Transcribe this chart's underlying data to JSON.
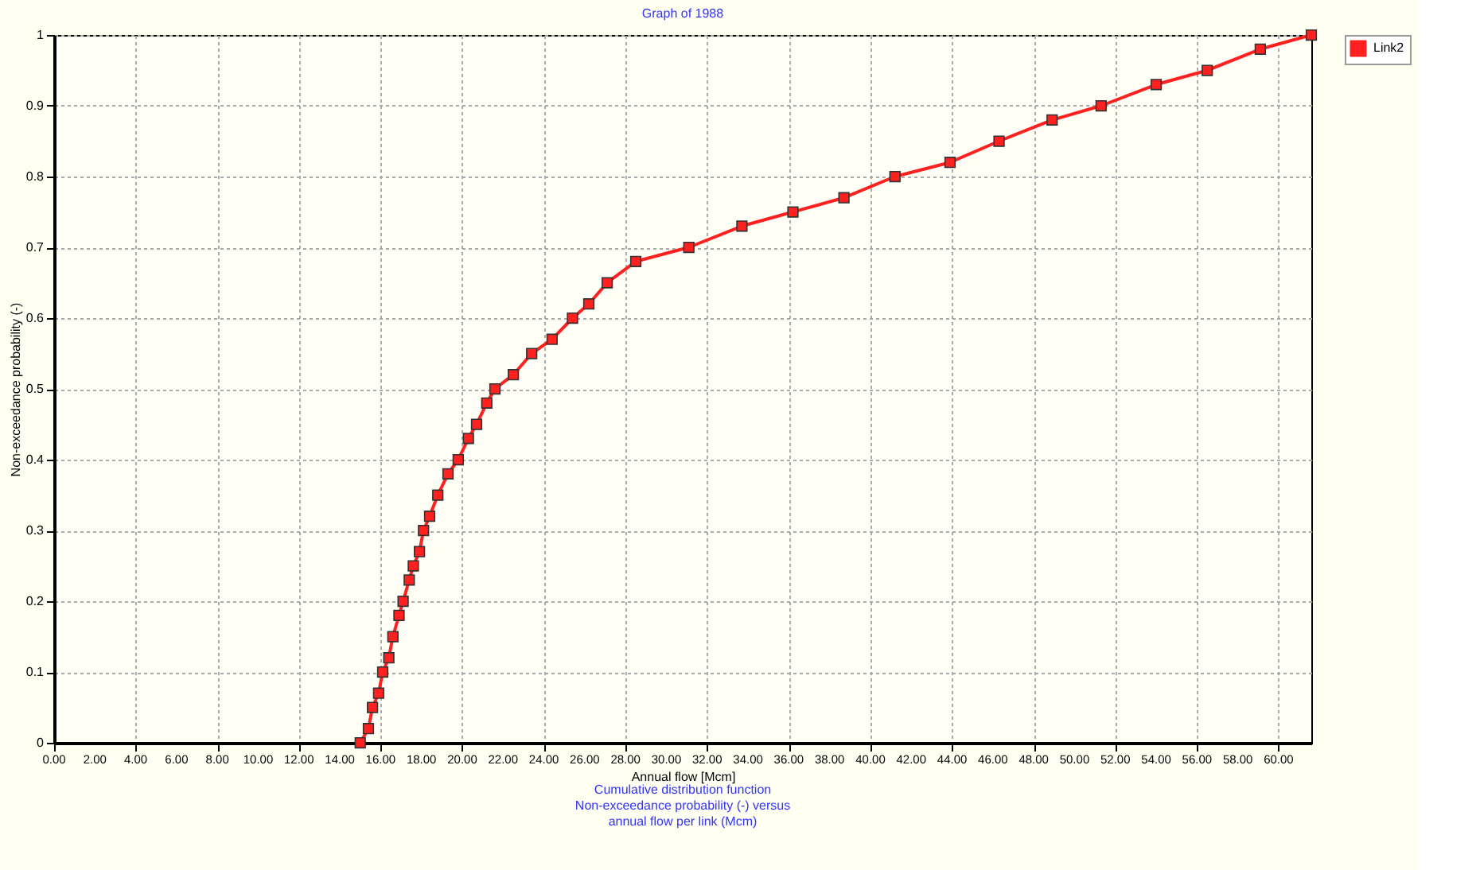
{
  "chart_data": {
    "type": "line",
    "title": "Graph of 1988",
    "xlabel": "Annual flow [Mcm]",
    "ylabel": "Non-exceedance probability (-)",
    "annotations": [
      "Cumulative distribution function",
      "Non-exceedance probability (-) versus",
      "annual flow per link (Mcm)"
    ],
    "x": [
      15.0,
      15.4,
      15.6,
      15.9,
      16.1,
      16.4,
      16.6,
      16.9,
      17.1,
      17.4,
      17.6,
      17.9,
      18.1,
      18.4,
      18.8,
      19.3,
      19.8,
      20.3,
      20.7,
      21.2,
      21.6,
      22.5,
      23.4,
      24.4,
      25.4,
      26.2,
      27.1,
      28.5,
      31.1,
      33.7,
      36.2,
      38.7,
      41.2,
      43.9,
      46.3,
      48.9,
      51.3,
      54.0,
      56.5,
      59.1,
      61.6
    ],
    "series": [
      {
        "name": "Link2",
        "color": "#ff2020",
        "values": [
          0,
          0.02,
          0.05,
          0.07,
          0.1,
          0.12,
          0.15,
          0.18,
          0.2,
          0.23,
          0.25,
          0.27,
          0.3,
          0.32,
          0.35,
          0.38,
          0.4,
          0.43,
          0.45,
          0.48,
          0.5,
          0.52,
          0.55,
          0.57,
          0.6,
          0.62,
          0.65,
          0.68,
          0.7,
          0.73,
          0.75,
          0.77,
          0.8,
          0.82,
          0.85,
          0.88,
          0.9,
          0.93,
          0.95,
          0.98,
          1.0
        ]
      }
    ],
    "xlim": [
      0,
      61.6
    ],
    "xticks": [
      {
        "value": 0,
        "label": "0.00"
      },
      {
        "value": 2,
        "label": "2.00"
      },
      {
        "value": 4,
        "label": "4.00"
      },
      {
        "value": 6,
        "label": "6.00"
      },
      {
        "value": 8,
        "label": "8.00"
      },
      {
        "value": 10,
        "label": "10.00"
      },
      {
        "value": 12,
        "label": "12.00"
      },
      {
        "value": 14,
        "label": "14.00"
      },
      {
        "value": 16,
        "label": "16.00"
      },
      {
        "value": 18,
        "label": "18.00"
      },
      {
        "value": 20,
        "label": "20.00"
      },
      {
        "value": 22,
        "label": "22.00"
      },
      {
        "value": 24,
        "label": "24.00"
      },
      {
        "value": 26,
        "label": "26.00"
      },
      {
        "value": 28,
        "label": "28.00"
      },
      {
        "value": 30,
        "label": "30.00"
      },
      {
        "value": 32,
        "label": "32.00"
      },
      {
        "value": 34,
        "label": "34.00"
      },
      {
        "value": 36,
        "label": "36.00"
      },
      {
        "value": 38,
        "label": "38.00"
      },
      {
        "value": 40,
        "label": "40.00"
      },
      {
        "value": 42,
        "label": "42.00"
      },
      {
        "value": 44,
        "label": "44.00"
      },
      {
        "value": 46,
        "label": "46.00"
      },
      {
        "value": 48,
        "label": "48.00"
      },
      {
        "value": 50,
        "label": "50.00"
      },
      {
        "value": 52,
        "label": "52.00"
      },
      {
        "value": 54,
        "label": "54.00"
      },
      {
        "value": 56,
        "label": "56.00"
      },
      {
        "value": 58,
        "label": "58.00"
      },
      {
        "value": 60,
        "label": "60.00"
      }
    ],
    "ylim": [
      0,
      1
    ],
    "yticks": [
      0,
      0.1,
      0.2,
      0.3,
      0.4,
      0.5,
      0.6,
      0.7,
      0.8,
      0.9,
      1
    ],
    "grid": true,
    "legend": "top right",
    "marker": "square",
    "line_style": "solid"
  }
}
